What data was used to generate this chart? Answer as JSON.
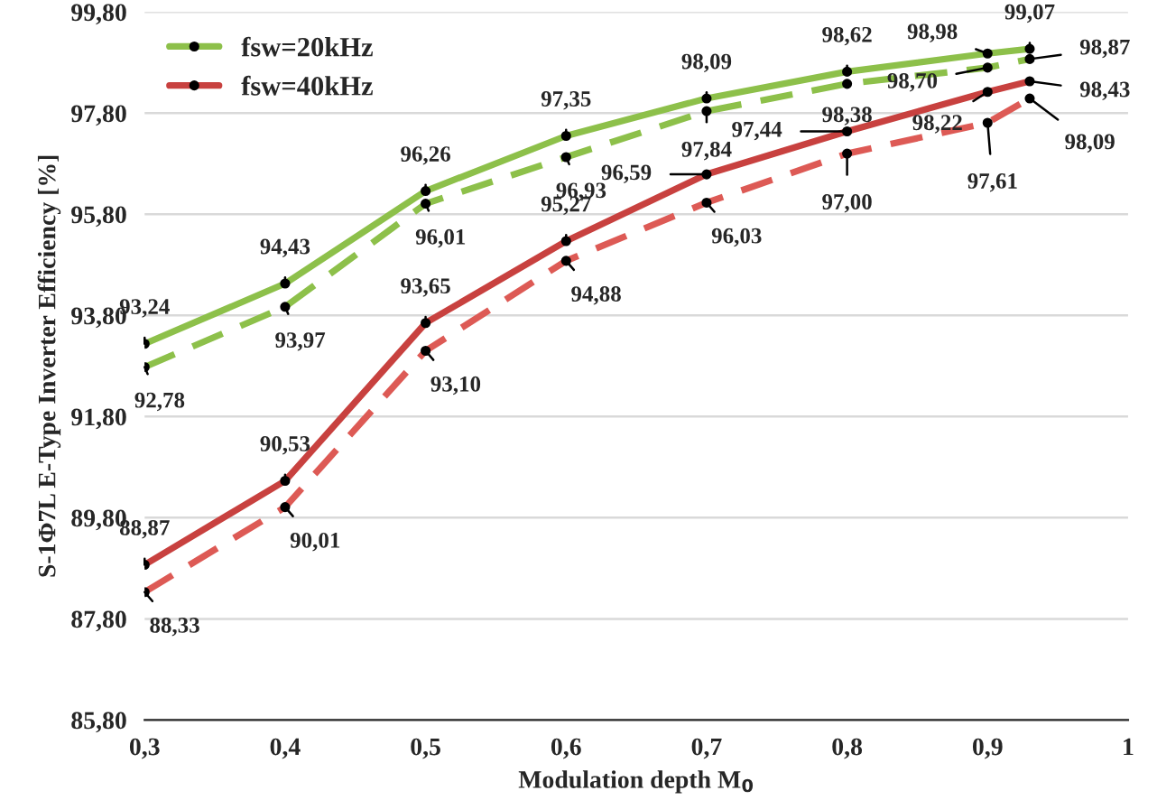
{
  "chart_data": {
    "type": "line",
    "xlabel": "Modulation depth M$_{0}$",
    "ylabel": "S-1Φ7L E-Type Inverter Efficiency [%]",
    "x": [
      0.3,
      0.4,
      0.5,
      0.6,
      0.7,
      0.8,
      0.9,
      0.93
    ],
    "series": [
      {
        "name": "fsw=20kHz",
        "color": "#8dc04a",
        "line_style": "solid",
        "values": [
          93.24,
          94.43,
          96.26,
          97.35,
          98.09,
          98.62,
          98.98,
          99.07
        ],
        "value_labels": [
          "93,24",
          "94,43",
          "96,26",
          "97,35",
          "98,09",
          "98,62",
          "98,98",
          "99,07"
        ]
      },
      {
        "color": "#8dc04a",
        "line_style": "dashed",
        "values": [
          92.78,
          93.97,
          96.01,
          96.93,
          97.84,
          98.38,
          98.7,
          98.87
        ],
        "value_labels": [
          "92,78",
          "93,97",
          "96,01",
          "96,93",
          "97,84",
          "98,38",
          "98,70",
          "98,87"
        ]
      },
      {
        "name": "fsw=40kHz",
        "color": "#c8413f",
        "line_style": "solid",
        "values": [
          88.87,
          90.53,
          93.65,
          95.27,
          96.59,
          97.44,
          98.22,
          98.43
        ],
        "value_labels": [
          "88,87",
          "90,53",
          "93,65",
          "95,27",
          "96,59",
          "97,44",
          "98,22",
          "98,43"
        ]
      },
      {
        "color": "#dd5a55",
        "line_style": "dashed",
        "values": [
          88.33,
          90.01,
          93.1,
          94.88,
          96.03,
          97.0,
          97.61,
          98.09
        ],
        "value_labels": [
          "88,33",
          "90,01",
          "93,10",
          "94,88",
          "96,03",
          "97,00",
          "97,61",
          "98,09"
        ]
      }
    ],
    "xlim": [
      0.3,
      1
    ],
    "xticks": [
      {
        "value": 0.3,
        "label": "0,3"
      },
      {
        "value": 0.4,
        "label": "0,4"
      },
      {
        "value": 0.5,
        "label": "0,5"
      },
      {
        "value": 0.6,
        "label": "0,6"
      },
      {
        "value": 0.7,
        "label": "0,7"
      },
      {
        "value": 0.8,
        "label": "0,8"
      },
      {
        "value": 0.9,
        "label": "0,9"
      },
      1
    ],
    "ylim": [
      85.8,
      99.8
    ],
    "yticks": [
      {
        "value": 85.8,
        "label": "85,80"
      },
      {
        "value": 87.8,
        "label": "87,80"
      },
      {
        "value": 89.8,
        "label": "89,80"
      },
      {
        "value": 91.8,
        "label": "91,80"
      },
      {
        "value": 93.8,
        "label": "93,80"
      },
      {
        "value": 95.8,
        "label": "95,80"
      },
      {
        "value": 97.8,
        "label": "97,80"
      },
      {
        "value": 99.8,
        "label": "99,80"
      }
    ],
    "grid": "y",
    "legend": "top left",
    "marker": "circle"
  }
}
